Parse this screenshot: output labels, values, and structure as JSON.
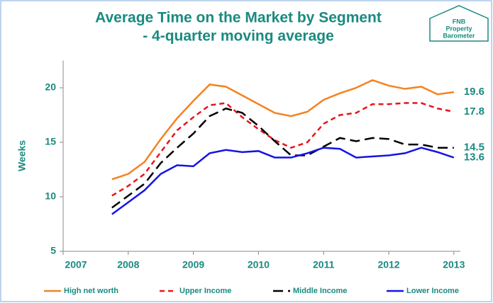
{
  "chart_data": {
    "type": "line",
    "title_lines": [
      "Average Time on the Market by Segment",
      "- 4-quarter moving average"
    ],
    "logo_lines": [
      "FNB",
      "Property",
      "Barometer"
    ],
    "ylabel": "Weeks",
    "x": [
      2007.75,
      2008,
      2008.25,
      2008.5,
      2008.75,
      2009,
      2009.25,
      2009.5,
      2009.75,
      2010,
      2010.25,
      2010.5,
      2010.75,
      2011,
      2011.25,
      2011.5,
      2011.75,
      2012,
      2012.25,
      2012.5,
      2012.75,
      2013
    ],
    "xlim": [
      2007,
      2013.1
    ],
    "xticks": [
      2007,
      2008,
      2009,
      2010,
      2011,
      2012,
      2013
    ],
    "ylim": [
      5,
      22.5
    ],
    "yticks": [
      5,
      10,
      15,
      20
    ],
    "series": [
      {
        "name": "High net worth",
        "color": "#f58220",
        "dash": "solid",
        "values": [
          11.6,
          12.1,
          13.2,
          15.3,
          17.2,
          18.8,
          20.3,
          20.1,
          19.3,
          18.5,
          17.7,
          17.4,
          17.8,
          18.9,
          19.5,
          20.0,
          20.7,
          20.2,
          19.9,
          20.1,
          19.4,
          19.6
        ]
      },
      {
        "name": "Upper Income",
        "color": "#e8141b",
        "dash": "dashed",
        "values": [
          10.1,
          11.0,
          12.1,
          14.1,
          16.1,
          17.3,
          18.4,
          18.6,
          17.3,
          16.2,
          15.2,
          14.5,
          15.0,
          16.7,
          17.5,
          17.7,
          18.5,
          18.5,
          18.6,
          18.6,
          18.1,
          17.8
        ]
      },
      {
        "name": "Middle Income",
        "color": "#000000",
        "dash": "longdash",
        "values": [
          9.0,
          10.1,
          11.2,
          13.1,
          14.5,
          15.8,
          17.4,
          18.1,
          17.7,
          16.5,
          15.1,
          13.8,
          13.8,
          14.6,
          15.4,
          15.1,
          15.4,
          15.3,
          14.8,
          14.8,
          14.5,
          14.5
        ]
      },
      {
        "name": "Lower Income",
        "color": "#1414e6",
        "dash": "solid",
        "values": [
          8.4,
          9.5,
          10.6,
          12.1,
          12.9,
          12.8,
          14.0,
          14.3,
          14.1,
          14.2,
          13.6,
          13.6,
          14.0,
          14.5,
          14.4,
          13.6,
          13.7,
          13.8,
          14.0,
          14.5,
          14.1,
          13.6
        ]
      }
    ]
  }
}
